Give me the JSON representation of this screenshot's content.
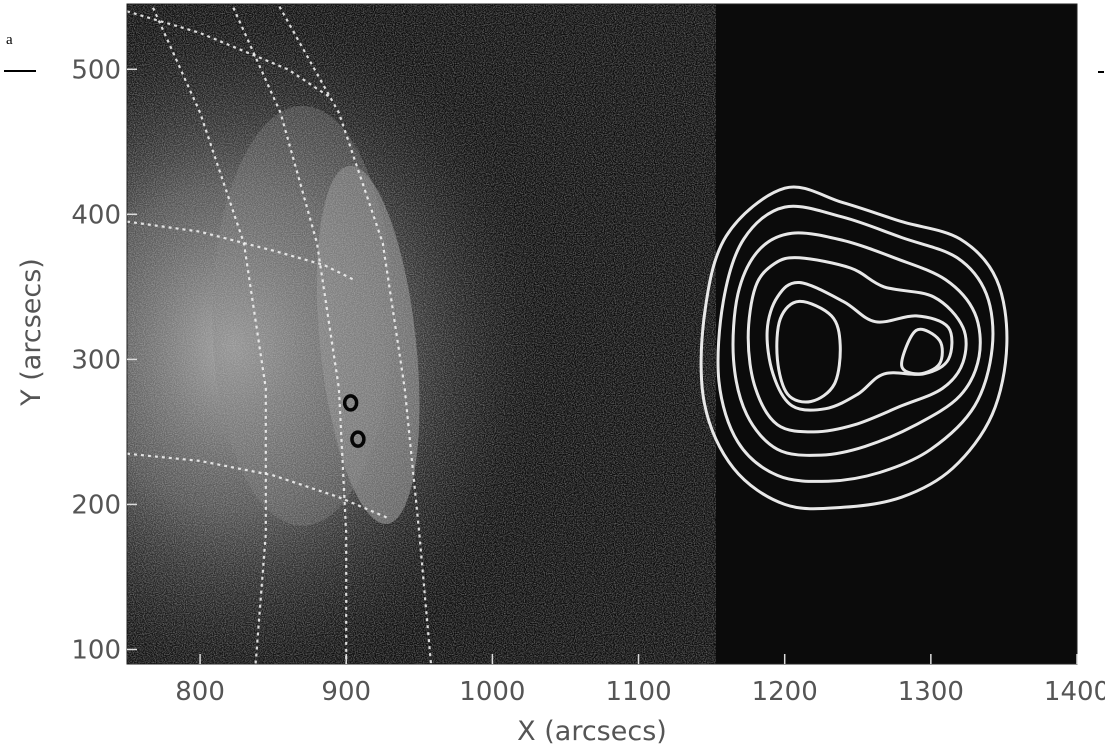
{
  "panel_label": "a",
  "colors": {
    "background": "#ffffff",
    "plot_background": "#0b0b0b",
    "axis_text": "#555555",
    "contour": "#e8e8e8",
    "grid_lines": "#f0f0f0",
    "sunspot_contour": "#050505"
  },
  "chart_data": {
    "type": "image-with-contours",
    "title": "",
    "xlabel": "X (arcsecs)",
    "ylabel": "Y (arcsecs)",
    "xlim": [
      750,
      1400
    ],
    "ylim": [
      90,
      545
    ],
    "xticks": [
      800,
      900,
      1000,
      1100,
      1200,
      1300,
      1400
    ],
    "yticks": [
      100,
      200,
      300,
      400,
      500
    ],
    "grid": false,
    "contour_set": {
      "name": "",
      "levels": [
        [
          [
            1200,
            418
          ],
          [
            1240,
            408
          ],
          [
            1280,
            395
          ],
          [
            1320,
            383
          ],
          [
            1345,
            355
          ],
          [
            1352,
            310
          ],
          [
            1342,
            262
          ],
          [
            1315,
            225
          ],
          [
            1280,
            205
          ],
          [
            1240,
            198
          ],
          [
            1200,
            200
          ],
          [
            1165,
            225
          ],
          [
            1145,
            270
          ],
          [
            1145,
            330
          ],
          [
            1160,
            385
          ]
        ],
        [
          [
            1200,
            405
          ],
          [
            1240,
            398
          ],
          [
            1280,
            384
          ],
          [
            1318,
            370
          ],
          [
            1338,
            345
          ],
          [
            1342,
            308
          ],
          [
            1330,
            268
          ],
          [
            1300,
            238
          ],
          [
            1265,
            222
          ],
          [
            1230,
            216
          ],
          [
            1195,
            220
          ],
          [
            1168,
            243
          ],
          [
            1155,
            285
          ],
          [
            1158,
            340
          ],
          [
            1172,
            383
          ]
        ],
        [
          [
            1205,
            387
          ],
          [
            1240,
            382
          ],
          [
            1275,
            370
          ],
          [
            1310,
            355
          ],
          [
            1330,
            332
          ],
          [
            1333,
            302
          ],
          [
            1320,
            275
          ],
          [
            1290,
            255
          ],
          [
            1255,
            240
          ],
          [
            1225,
            234
          ],
          [
            1195,
            238
          ],
          [
            1174,
            262
          ],
          [
            1165,
            300
          ],
          [
            1168,
            345
          ],
          [
            1182,
            375
          ]
        ],
        [
          [
            1210,
            370
          ],
          [
            1245,
            363
          ],
          [
            1268,
            350
          ],
          [
            1302,
            343
          ],
          [
            1322,
            322
          ],
          [
            1322,
            298
          ],
          [
            1308,
            280
          ],
          [
            1280,
            268
          ],
          [
            1248,
            255
          ],
          [
            1220,
            250
          ],
          [
            1195,
            255
          ],
          [
            1180,
            280
          ],
          [
            1175,
            315
          ],
          [
            1180,
            350
          ],
          [
            1193,
            366
          ]
        ],
        [
          [
            1210,
            353
          ],
          [
            1240,
            340
          ],
          [
            1262,
            326
          ],
          [
            1290,
            330
          ],
          [
            1312,
            322
          ],
          [
            1312,
            300
          ],
          [
            1295,
            290
          ],
          [
            1268,
            290
          ],
          [
            1250,
            276
          ],
          [
            1228,
            266
          ],
          [
            1205,
            268
          ],
          [
            1192,
            290
          ],
          [
            1188,
            320
          ],
          [
            1195,
            343
          ]
        ],
        [
          [
            1210,
            340
          ],
          [
            1232,
            330
          ],
          [
            1238,
            310
          ],
          [
            1234,
            283
          ],
          [
            1218,
            271
          ],
          [
            1202,
            276
          ],
          [
            1195,
            300
          ],
          [
            1197,
            328
          ]
        ],
        [
          [
            1290,
            320
          ],
          [
            1306,
            313
          ],
          [
            1306,
            297
          ],
          [
            1292,
            290
          ],
          [
            1280,
            296
          ]
        ]
      ]
    },
    "sunspot_contours": [
      {
        "x": 903,
        "y": 270
      },
      {
        "x": 908,
        "y": 245
      }
    ]
  }
}
